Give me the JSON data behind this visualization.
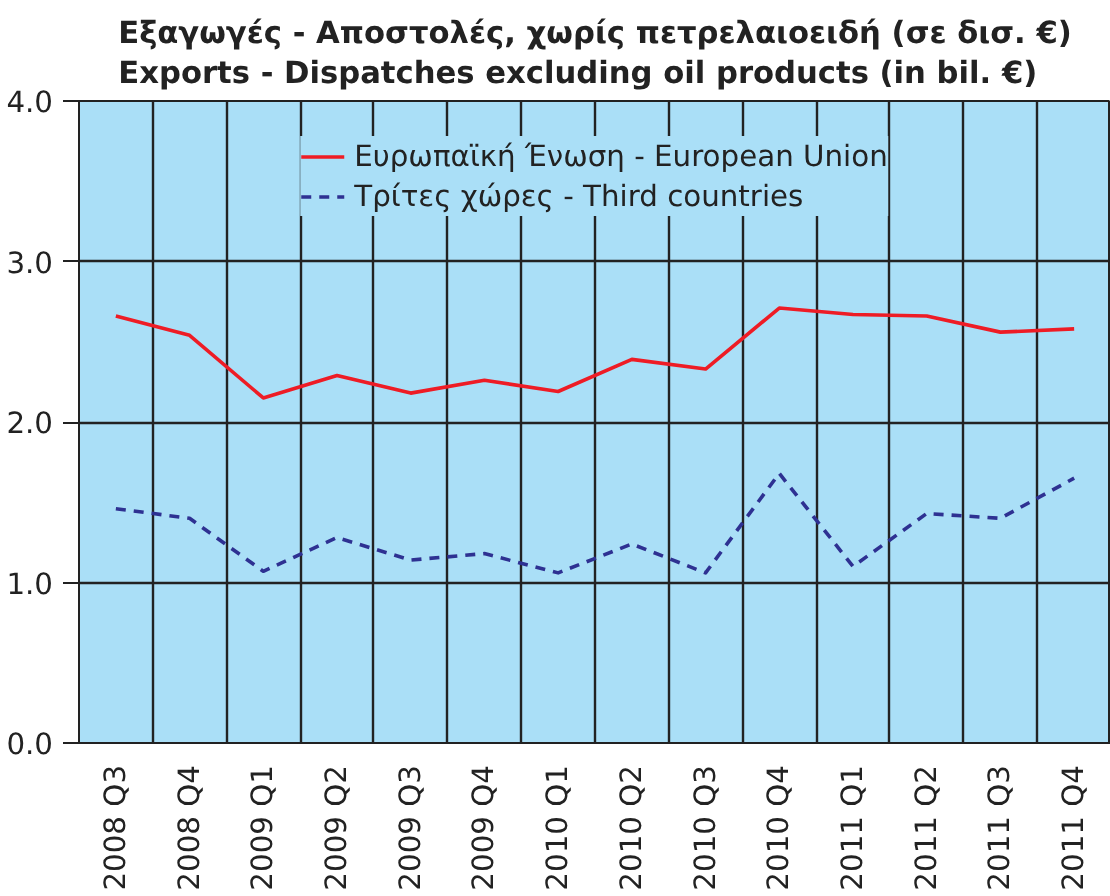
{
  "chart_data": {
    "type": "line",
    "title": "Εξαγωγές - Αποστολές, χωρίς πετρελαιοειδή (σε δισ. €)\nExports - Dispatches excluding oil products (in bil. €)",
    "categories": [
      "2008 Q3",
      "2008 Q4",
      "2009 Q1",
      "2009 Q2",
      "2009 Q3",
      "2009 Q4",
      "2010 Q1",
      "2010 Q2",
      "2010 Q3",
      "2010 Q4",
      "2011 Q1",
      "2011 Q2",
      "2011 Q3",
      "2011 Q4"
    ],
    "series": [
      {
        "name": "Ευρωπαϊκή Ένωση - European Union",
        "color": "#ee1c25",
        "line_style": "solid",
        "values": [
          2.66,
          2.54,
          2.15,
          2.29,
          2.18,
          2.26,
          2.19,
          2.39,
          2.33,
          2.71,
          2.67,
          2.66,
          2.56,
          2.58
        ]
      },
      {
        "name": "Τρίτες χώρες - Third countries",
        "color": "#2e3192",
        "line_style": "dashed",
        "values": [
          1.46,
          1.4,
          1.07,
          1.28,
          1.14,
          1.18,
          1.06,
          1.24,
          1.06,
          1.68,
          1.1,
          1.43,
          1.4,
          1.65
        ]
      }
    ],
    "ylim": [
      0,
      4.0
    ],
    "yticks": [
      {
        "value": 0,
        "label": "0.0"
      },
      {
        "value": 1,
        "label": "1.0"
      },
      {
        "value": 2,
        "label": "2.0"
      },
      {
        "value": 3,
        "label": "3.0"
      },
      {
        "value": 4,
        "label": "4.0"
      }
    ],
    "grid": true,
    "legend": "top"
  }
}
